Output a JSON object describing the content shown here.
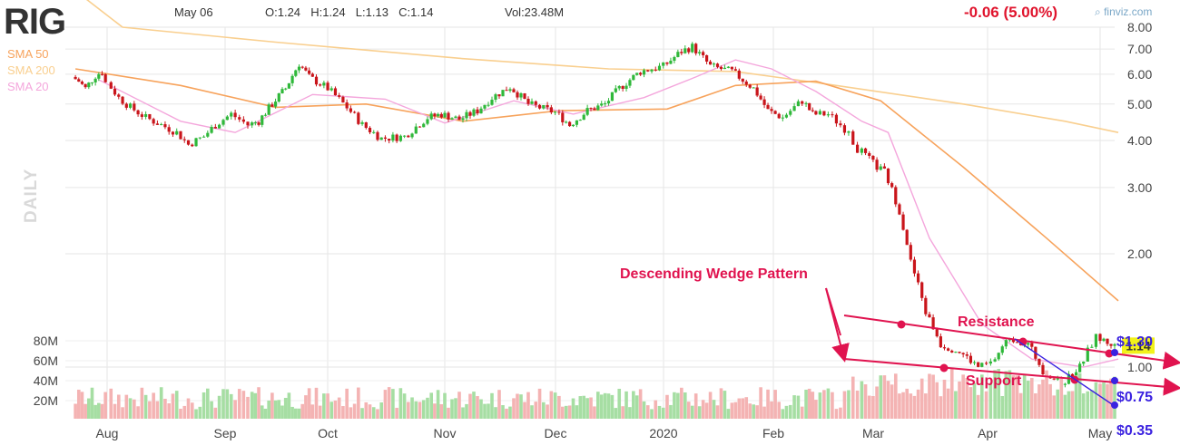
{
  "header": {
    "ticker": "RIG",
    "date": "May 06",
    "ohlc": "O:1.24  H:1.24  L:1.13  C:1.14",
    "volume": "Vol:23.48M",
    "change": "-0.06 (5.00%)",
    "brand": "finviz.com",
    "period_label": "DAILY"
  },
  "legend": [
    {
      "label": "SMA 50",
      "color": "#f7a35c"
    },
    {
      "label": "SMA 200",
      "color": "#f9cf8f"
    },
    {
      "label": "SMA 20",
      "color": "#f4a6dc"
    }
  ],
  "colors": {
    "up": "#2fb83a",
    "down": "#c9151b",
    "vol_up": "#a6dea3",
    "vol_down": "#f4b3b3",
    "annotation": "#e0134f",
    "price_target": "#3b22e0",
    "grid": "#e6e6e6"
  },
  "chart_data": {
    "type": "candlestick",
    "y_axis": {
      "ticks": [
        "8.00",
        "7.00",
        "6.00",
        "5.00",
        "4.00",
        "3.00",
        "2.00",
        "1.00"
      ],
      "scale": "log"
    },
    "x_axis": {
      "ticks": [
        "Aug",
        "Sep",
        "Oct",
        "Nov",
        "Dec",
        "2020",
        "Feb",
        "Mar",
        "Apr",
        "May"
      ]
    },
    "volume_axis": {
      "ticks": [
        "80M",
        "60M",
        "40M",
        "20M"
      ]
    },
    "last_price": "1.14",
    "close_series": [
      {
        "date": "Jul 22",
        "close": 5.9
      },
      {
        "date": "Jul 24",
        "close": 5.75
      },
      {
        "date": "Jul 26",
        "close": 5.5
      },
      {
        "date": "Jul 29",
        "close": 5.95
      },
      {
        "date": "Jul 31",
        "close": 6.1
      },
      {
        "date": "Aug 02",
        "close": 5.7
      },
      {
        "date": "Aug 05",
        "close": 5.2
      },
      {
        "date": "Aug 08",
        "close": 4.9
      },
      {
        "date": "Aug 12",
        "close": 4.6
      },
      {
        "date": "Aug 16",
        "close": 4.4
      },
      {
        "date": "Aug 20",
        "close": 4.2
      },
      {
        "date": "Aug 23",
        "close": 3.9
      },
      {
        "date": "Aug 27",
        "close": 4.1
      },
      {
        "date": "Aug 30",
        "close": 4.4
      },
      {
        "date": "Sep 04",
        "close": 4.7
      },
      {
        "date": "Sep 09",
        "close": 4.4
      },
      {
        "date": "Sep 12",
        "close": 4.5
      },
      {
        "date": "Sep 16",
        "close": 5.0
      },
      {
        "date": "Sep 20",
        "close": 5.5
      },
      {
        "date": "Sep 24",
        "close": 6.4
      },
      {
        "date": "Sep 27",
        "close": 5.9
      },
      {
        "date": "Oct 02",
        "close": 5.5
      },
      {
        "date": "Oct 07",
        "close": 4.9
      },
      {
        "date": "Oct 11",
        "close": 4.4
      },
      {
        "date": "Oct 16",
        "close": 4.05
      },
      {
        "date": "Oct 22",
        "close": 4.1
      },
      {
        "date": "Oct 28",
        "close": 4.6
      },
      {
        "date": "Nov 01",
        "close": 4.7
      },
      {
        "date": "Nov 06",
        "close": 4.55
      },
      {
        "date": "Nov 11",
        "close": 4.8
      },
      {
        "date": "Nov 15",
        "close": 5.2
      },
      {
        "date": "Nov 20",
        "close": 5.55
      },
      {
        "date": "Nov 25",
        "close": 5.0
      },
      {
        "date": "Dec 02",
        "close": 4.75
      },
      {
        "date": "Dec 06",
        "close": 4.4
      },
      {
        "date": "Dec 11",
        "close": 4.8
      },
      {
        "date": "Dec 16",
        "close": 5.0
      },
      {
        "date": "Dec 20",
        "close": 5.5
      },
      {
        "date": "Dec 26",
        "close": 6.1
      },
      {
        "date": "Jan 02",
        "close": 6.3
      },
      {
        "date": "Jan 07",
        "close": 6.9
      },
      {
        "date": "Jan 10",
        "close": 7.1
      },
      {
        "date": "Jan 15",
        "close": 6.3
      },
      {
        "date": "Jan 21",
        "close": 6.1
      },
      {
        "date": "Jan 27",
        "close": 5.5
      },
      {
        "date": "Jan 31",
        "close": 4.8
      },
      {
        "date": "Feb 05",
        "close": 4.6
      },
      {
        "date": "Feb 11",
        "close": 5.1
      },
      {
        "date": "Feb 14",
        "close": 4.7
      },
      {
        "date": "Feb 19",
        "close": 4.7
      },
      {
        "date": "Feb 24",
        "close": 4.3
      },
      {
        "date": "Feb 28",
        "close": 3.8
      },
      {
        "date": "Mar 03",
        "close": 3.4
      },
      {
        "date": "Mar 05",
        "close": 3.3
      },
      {
        "date": "Mar 09",
        "close": 2.6
      },
      {
        "date": "Mar 12",
        "close": 1.9
      },
      {
        "date": "Mar 16",
        "close": 1.4
      },
      {
        "date": "Mar 20",
        "close": 1.15
      },
      {
        "date": "Mar 25",
        "close": 1.1
      },
      {
        "date": "Mar 30",
        "close": 1.0
      },
      {
        "date": "Apr 03",
        "close": 1.02
      },
      {
        "date": "Apr 08",
        "close": 1.2
      },
      {
        "date": "Apr 13",
        "close": 1.15
      },
      {
        "date": "Apr 17",
        "close": 0.98
      },
      {
        "date": "Apr 22",
        "close": 0.9
      },
      {
        "date": "Apr 27",
        "close": 1.0
      },
      {
        "date": "May 01",
        "close": 1.2
      },
      {
        "date": "May 06",
        "close": 1.14
      }
    ],
    "sma50": [
      {
        "date": "Jul 22",
        "value": 6.2
      },
      {
        "date": "Aug 20",
        "value": 5.6
      },
      {
        "date": "Sep 16",
        "value": 4.9
      },
      {
        "date": "Oct 11",
        "value": 5.0
      },
      {
        "date": "Nov 06",
        "value": 4.5
      },
      {
        "date": "Dec 02",
        "value": 4.8
      },
      {
        "date": "Jan 02",
        "value": 4.85
      },
      {
        "date": "Jan 21",
        "value": 5.6
      },
      {
        "date": "Feb 14",
        "value": 5.75
      },
      {
        "date": "Mar 03",
        "value": 5.1
      },
      {
        "date": "Mar 25",
        "value": 3.4
      },
      {
        "date": "Apr 17",
        "value": 2.2
      },
      {
        "date": "May 06",
        "value": 1.5
      }
    ],
    "sma200": [
      {
        "date": "Jul 22",
        "value": 10.0
      },
      {
        "date": "Aug 05",
        "value": 8.0
      },
      {
        "date": "Sep 16",
        "value": 7.3
      },
      {
        "date": "Nov 06",
        "value": 6.6
      },
      {
        "date": "Dec 16",
        "value": 6.2
      },
      {
        "date": "Jan 21",
        "value": 6.1
      },
      {
        "date": "Feb 14",
        "value": 5.7
      },
      {
        "date": "Mar 25",
        "value": 5.0
      },
      {
        "date": "Apr 22",
        "value": 4.5
      },
      {
        "date": "May 06",
        "value": 4.2
      }
    ],
    "sma20": [
      {
        "date": "Jul 29",
        "value": 5.8
      },
      {
        "date": "Aug 20",
        "value": 4.5
      },
      {
        "date": "Sep 04",
        "value": 4.2
      },
      {
        "date": "Sep 27",
        "value": 5.3
      },
      {
        "date": "Oct 16",
        "value": 5.15
      },
      {
        "date": "Nov 01",
        "value": 4.45
      },
      {
        "date": "Nov 20",
        "value": 5.1
      },
      {
        "date": "Dec 06",
        "value": 4.7
      },
      {
        "date": "Dec 26",
        "value": 5.2
      },
      {
        "date": "Jan 10",
        "value": 5.9
      },
      {
        "date": "Jan 21",
        "value": 6.55
      },
      {
        "date": "Jan 31",
        "value": 6.2
      },
      {
        "date": "Feb 14",
        "value": 5.4
      },
      {
        "date": "Feb 28",
        "value": 4.5
      },
      {
        "date": "Mar 05",
        "value": 4.2
      },
      {
        "date": "Mar 16",
        "value": 2.2
      },
      {
        "date": "Mar 30",
        "value": 1.3
      },
      {
        "date": "Apr 13",
        "value": 1.05
      },
      {
        "date": "Apr 27",
        "value": 1.0
      },
      {
        "date": "May 06",
        "value": 1.05
      }
    ],
    "annotations": {
      "pattern": "Descending Wedge Pattern",
      "resistance": "Resistance",
      "support": "Support",
      "price_targets": [
        "$1.30",
        "$0.75",
        "$0.35"
      ]
    }
  }
}
